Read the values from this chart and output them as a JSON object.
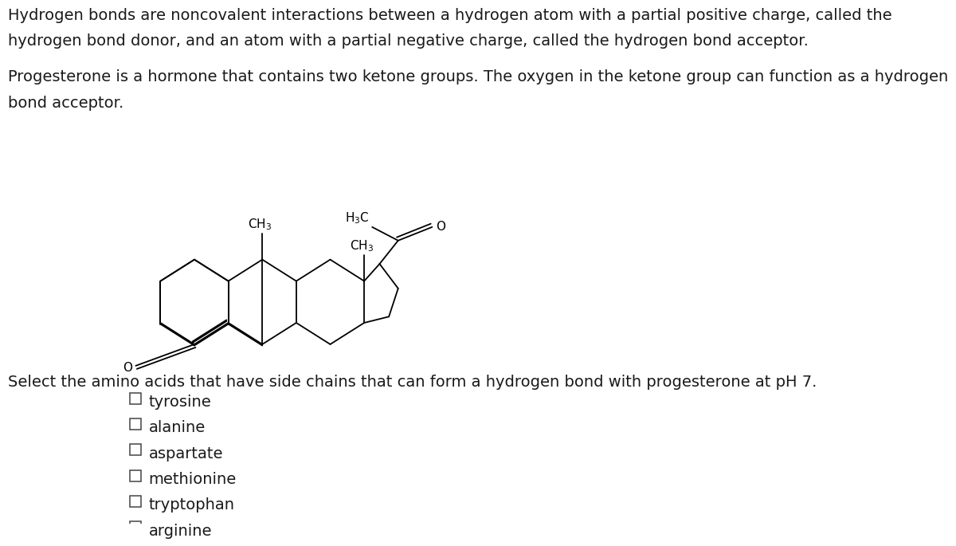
{
  "background_color": "#ffffff",
  "text_color": "#1a1a1a",
  "paragraph1_line1": "Hydrogen bonds are noncovalent interactions between a hydrogen atom with a partial positive charge, called the",
  "paragraph1_line2": "hydrogen bond donor, and an atom with a partial negative charge, called the hydrogen bond acceptor.",
  "paragraph2_line1": "Progesterone is a hormone that contains two ketone groups. The oxygen in the ketone group can function as a hydrogen",
  "paragraph2_line2": "bond acceptor.",
  "question": "Select the amino acids that have side chains that can form a hydrogen bond with progesterone at pH 7.",
  "choices": [
    "tyrosine",
    "alanine",
    "aspartate",
    "methionine",
    "tryptophan",
    "arginine"
  ],
  "font_size_text": 14,
  "font_size_choices": 14,
  "font_size_molecule": 11
}
